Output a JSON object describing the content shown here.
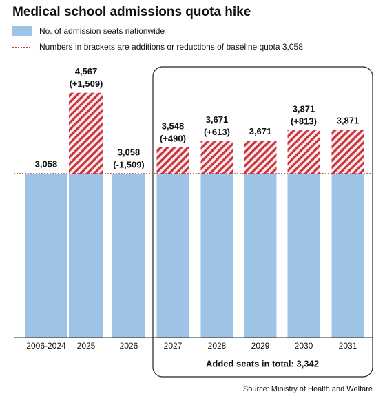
{
  "chart_data": {
    "type": "bar",
    "title": "Medical school admissions quota hike",
    "categories": [
      "2006-2024",
      "2025",
      "2026",
      "2027",
      "2028",
      "2029",
      "2030",
      "2031"
    ],
    "series": [
      {
        "name": "No. of admission seats nationwide",
        "color": "#9dc3e6",
        "values": [
          3058,
          4567,
          3058,
          3548,
          3671,
          3671,
          3871,
          3871
        ],
        "value_labels": [
          "3,058",
          "4,567",
          "3,058",
          "3,548",
          "3,671",
          "3,671",
          "3,871",
          "3,871"
        ]
      }
    ],
    "bracket_labels": [
      null,
      "(+1,509)",
      "(-1,509)",
      "(+490)",
      "(+613)",
      null,
      "(+813)",
      null
    ],
    "baseline": {
      "value": 3058,
      "label": "Numbers in brackets are additions or reductions of baseline quota 3,058",
      "color": "#c8323c"
    },
    "box_note": "Added seats in total: 3,342",
    "source": "Source:  Ministry of Health and Welfare",
    "ylim": [
      0,
      5000
    ]
  }
}
